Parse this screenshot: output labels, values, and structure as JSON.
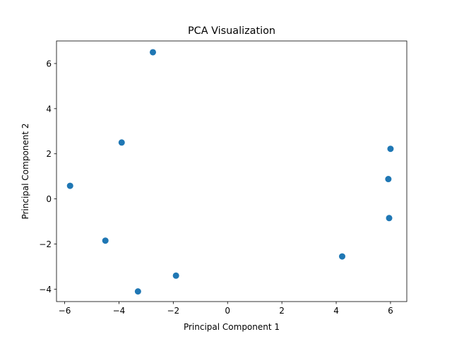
{
  "chart_data": {
    "type": "scatter",
    "title": "PCA Visualization",
    "xlabel": "Principal Component 1",
    "ylabel": "Principal Component 2",
    "xlim": [
      -6.3,
      6.6
    ],
    "ylim": [
      -4.55,
      7.0
    ],
    "xticks": [
      -6,
      -4,
      -2,
      0,
      2,
      4,
      6
    ],
    "xtick_labels": [
      "−6",
      "−4",
      "−2",
      "0",
      "2",
      "4",
      "6"
    ],
    "yticks": [
      -4,
      -2,
      0,
      2,
      4,
      6
    ],
    "ytick_labels": [
      "−4",
      "−2",
      "0",
      "2",
      "4",
      "6"
    ],
    "grid": false,
    "marker_color": "#1f77b4",
    "points": [
      {
        "x": -2.75,
        "y": 6.5
      },
      {
        "x": -3.9,
        "y": 2.5
      },
      {
        "x": -5.8,
        "y": 0.58
      },
      {
        "x": -4.5,
        "y": -1.85
      },
      {
        "x": -1.9,
        "y": -3.4
      },
      {
        "x": -3.3,
        "y": -4.1
      },
      {
        "x": 6.0,
        "y": 2.22
      },
      {
        "x": 5.92,
        "y": 0.88
      },
      {
        "x": 5.95,
        "y": -0.85
      },
      {
        "x": 4.22,
        "y": -2.55
      }
    ]
  }
}
